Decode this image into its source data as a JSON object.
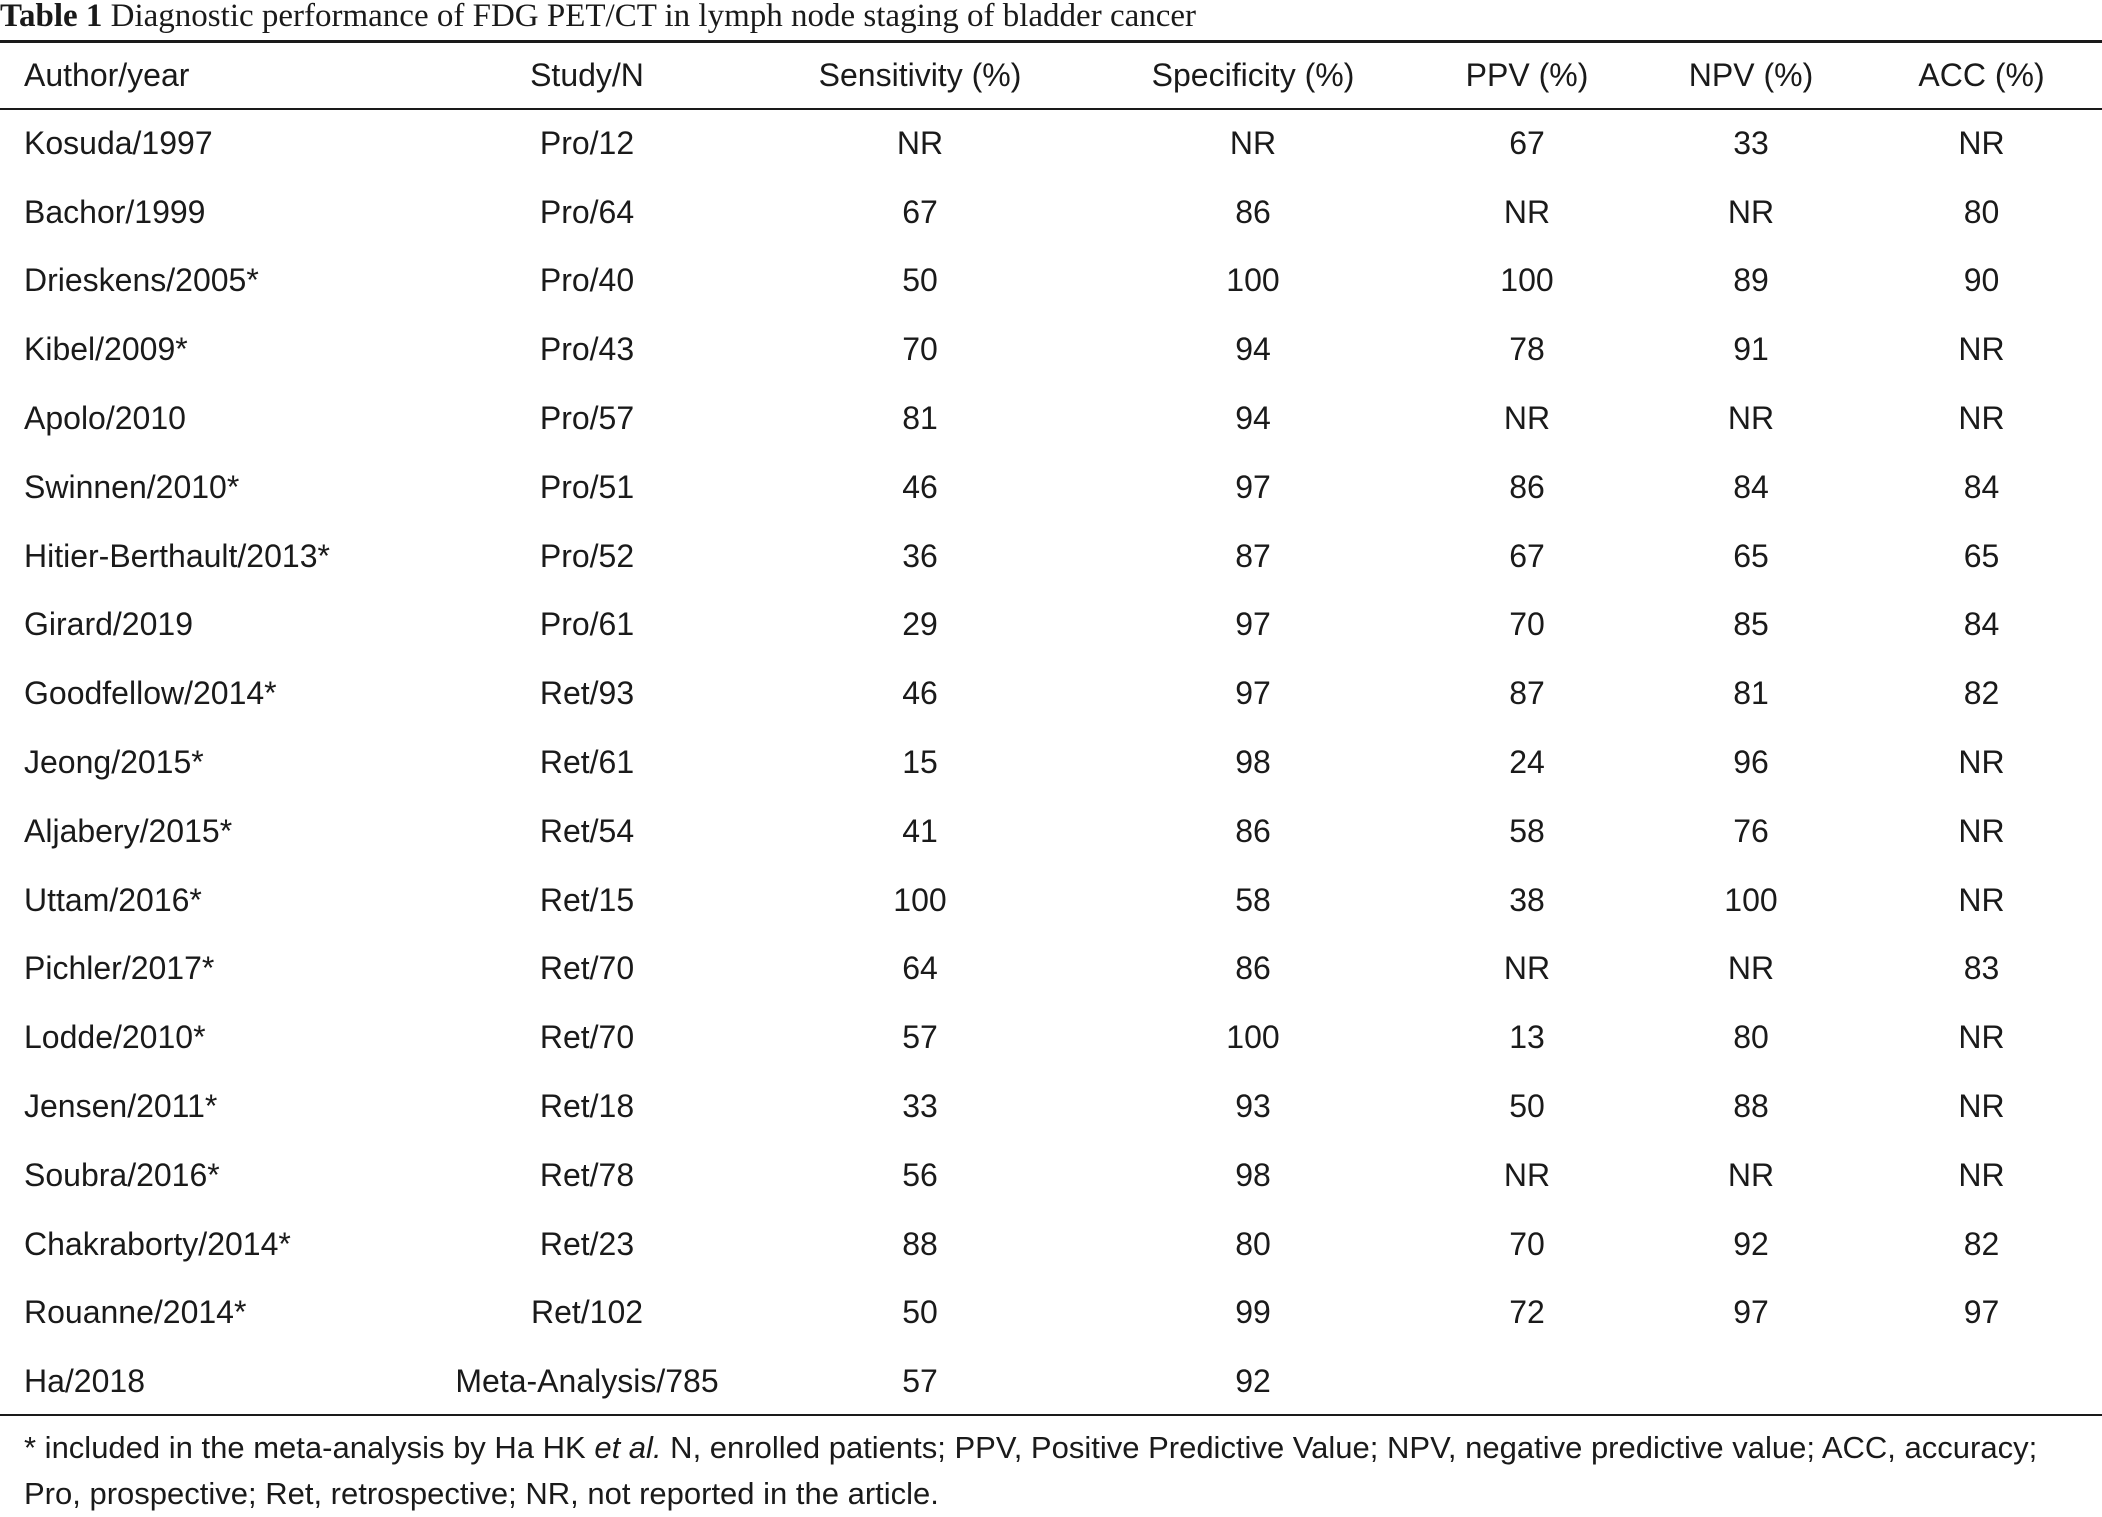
{
  "caption": {
    "label": "Table 1",
    "title": "Diagnostic performance of FDG PET/CT in lymph node staging of bladder cancer"
  },
  "columns": [
    "Author/year",
    "Study/N",
    "Sensitivity (%)",
    "Specificity (%)",
    "PPV (%)",
    "NPV (%)",
    "ACC (%)"
  ],
  "rows": [
    [
      "Kosuda/1997",
      "Pro/12",
      "NR",
      "NR",
      "67",
      "33",
      "NR"
    ],
    [
      "Bachor/1999",
      "Pro/64",
      "67",
      "86",
      "NR",
      "NR",
      "80"
    ],
    [
      "Drieskens/2005*",
      "Pro/40",
      "50",
      "100",
      "100",
      "89",
      "90"
    ],
    [
      "Kibel/2009*",
      "Pro/43",
      "70",
      "94",
      "78",
      "91",
      "NR"
    ],
    [
      "Apolo/2010",
      "Pro/57",
      "81",
      "94",
      "NR",
      "NR",
      "NR"
    ],
    [
      "Swinnen/2010*",
      "Pro/51",
      "46",
      "97",
      "86",
      "84",
      "84"
    ],
    [
      "Hitier-Berthault/2013*",
      "Pro/52",
      "36",
      "87",
      "67",
      "65",
      "65"
    ],
    [
      "Girard/2019",
      "Pro/61",
      "29",
      "97",
      "70",
      "85",
      "84"
    ],
    [
      "Goodfellow/2014*",
      "Ret/93",
      "46",
      "97",
      "87",
      "81",
      "82"
    ],
    [
      "Jeong/2015*",
      "Ret/61",
      "15",
      "98",
      "24",
      "96",
      "NR"
    ],
    [
      "Aljabery/2015*",
      "Ret/54",
      "41",
      "86",
      "58",
      "76",
      "NR"
    ],
    [
      "Uttam/2016*",
      "Ret/15",
      "100",
      "58",
      "38",
      "100",
      "NR"
    ],
    [
      "Pichler/2017*",
      "Ret/70",
      "64",
      "86",
      "NR",
      "NR",
      "83"
    ],
    [
      "Lodde/2010*",
      "Ret/70",
      "57",
      "100",
      "13",
      "80",
      "NR"
    ],
    [
      "Jensen/2011*",
      "Ret/18",
      "33",
      "93",
      "50",
      "88",
      "NR"
    ],
    [
      "Soubra/2016*",
      "Ret/78",
      "56",
      "98",
      "NR",
      "NR",
      "NR"
    ],
    [
      "Chakraborty/2014*",
      "Ret/23",
      "88",
      "80",
      "70",
      "92",
      "82"
    ],
    [
      "Rouanne/2014*",
      "Ret/102",
      "50",
      "99",
      "72",
      "97",
      "97"
    ],
    [
      "Ha/2018",
      "Meta-Analysis/785",
      "57",
      "92",
      "",
      "",
      ""
    ]
  ],
  "footnote": {
    "part1": "* included in the meta-analysis by Ha HK ",
    "italic": "et al.",
    "part2": " N, enrolled patients; PPV, Positive Predictive Value; NPV, negative predictive value; ACC, accuracy; Pro, prospective; Ret, retrospective; NR, not reported in the article."
  }
}
